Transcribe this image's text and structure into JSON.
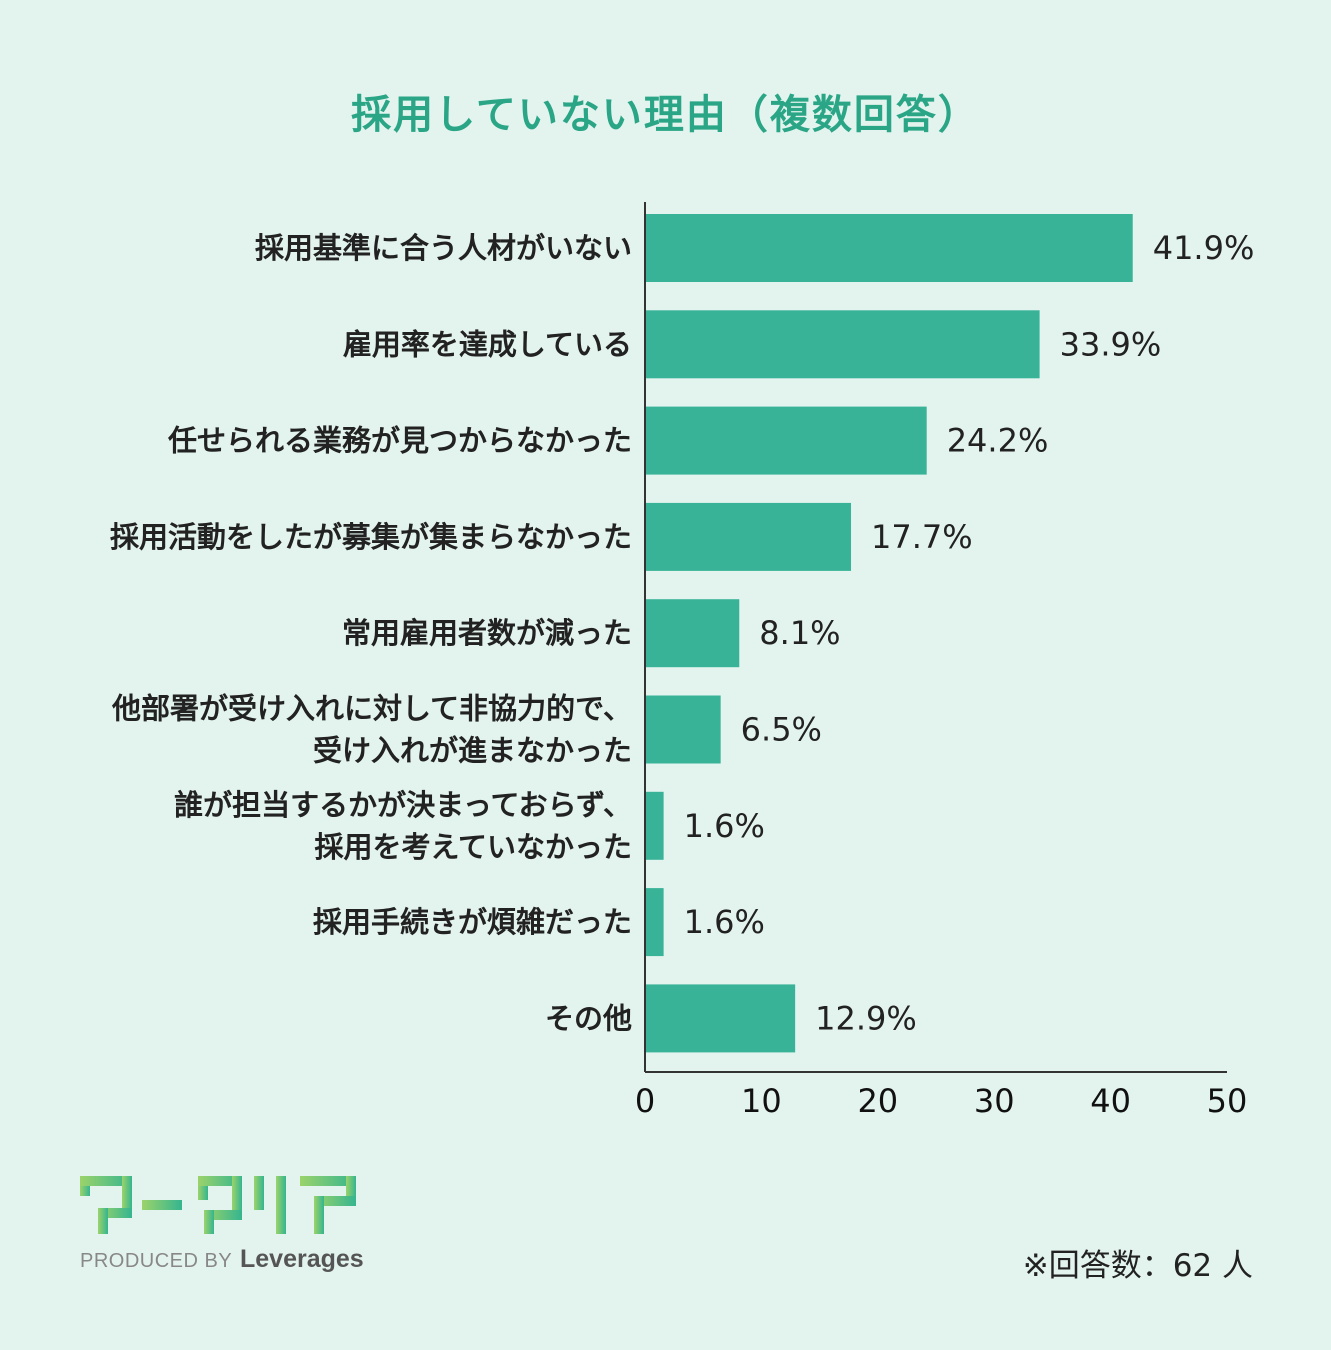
{
  "title": "採用していない理由（複数回答）",
  "chart_data": {
    "type": "bar",
    "orientation": "horizontal",
    "title": "採用していない理由（複数回答）",
    "categories": [
      [
        "採用基準に合う人材がいない"
      ],
      [
        "雇用率を達成している"
      ],
      [
        "任せられる業務が見つからなかった"
      ],
      [
        "採用活動をしたが募集が集まらなかった"
      ],
      [
        "常用雇用者数が減った"
      ],
      [
        "他部署が受け入れに対して非協力的で、",
        "受け入れが進まなかった"
      ],
      [
        "誰が担当するかが決まっておらず、",
        "採用を考えていなかった"
      ],
      [
        "採用手続きが煩雑だった"
      ],
      [
        "その他"
      ]
    ],
    "values": [
      41.9,
      33.9,
      24.2,
      17.7,
      8.1,
      6.5,
      1.6,
      1.6,
      12.9
    ],
    "value_suffix": "%",
    "xlim": [
      0,
      50
    ],
    "xticks": [
      0,
      10,
      20,
      30,
      40,
      50
    ],
    "grid": false,
    "bar_color": "#38b398"
  },
  "logo": {
    "mark_text": "ワークリア",
    "produced_by": "PRODUCED BY",
    "brand": "Leverages"
  },
  "respondents": "※回答数：62 人",
  "colors": {
    "background": "#e3f4ef",
    "accent": "#2aa586",
    "bar": "#38b398"
  }
}
